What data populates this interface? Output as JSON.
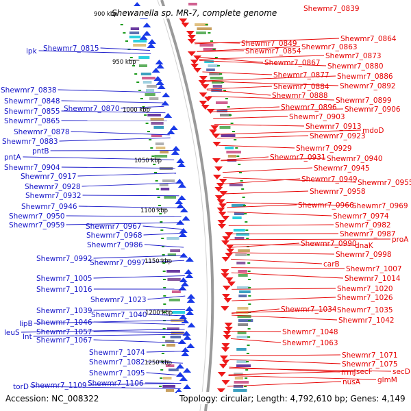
{
  "title": "Shewanella sp. MR-7, complete genome",
  "accession": "Accession: NC_008322",
  "topology": "Topology: circular; Length: 4,792,610 bp; Genes: 4,149",
  "colors": {
    "forward_label": "#1414c8",
    "reverse_label": "#e60000",
    "backbone": "#9a9a9a",
    "tick": "#1a9a1a"
  },
  "scale_ticks": [
    "900 kbp",
    "950 kbp",
    "1000 kbp",
    "1050 kbp",
    "1100 kbp",
    "1150 kbp",
    "1200 kbp",
    "1250 kbp"
  ],
  "left_labels": [
    "ipk",
    "Shewmr7_0815",
    "Shewmr7_0838",
    "Shewmr7_0848",
    "Shewmr7_0855",
    "Shewmr7_0870",
    "Shewmr7_0865",
    "Shewmr7_0878",
    "Shewmr7_0883",
    "pntB",
    "pntA",
    "Shewmr7_0904",
    "Shewmr7_0917",
    "Shewmr7_0928",
    "Shewmr7_0932",
    "Shewmr7_0946",
    "Shewmr7_0950",
    "Shewmr7_0959",
    "Shewmr7_0967",
    "Shewmr7_0968",
    "Shewmr7_0986",
    "Shewmr7_0992",
    "Shewmr7_0997",
    "Shewmr7_1005",
    "Shewmr7_1016",
    "Shewmr7_1023",
    "Shewmr7_1039",
    "Shewmr7_1040",
    "lipB",
    "Shewmr7_1046",
    "leuS",
    "Shewmr7_1057",
    "lnt",
    "Shewmr7_1067",
    "Shewmr7_1074",
    "Shewmr7_1082",
    "Shewmr7_1095",
    "Shewmr7_1106",
    "torD",
    "Shewmr7_1109"
  ],
  "right_labels": [
    "Shewmr7_0839",
    "Shewmr7_0864",
    "Shewmr7_0849",
    "Shewmr7_0863",
    "Shewmr7_0854",
    "Shewmr7_0873",
    "Shewmr7_0867",
    "Shewmr7_0880",
    "Shewmr7_0886",
    "Shewmr7_0877",
    "Shewmr7_0884",
    "Shewmr7_0892",
    "Shewmr7_0888",
    "Shewmr7_0899",
    "Shewmr7_0896",
    "Shewmr7_0906",
    "Shewmr7_0903",
    "Shewmr7_0913",
    "mdoD",
    "Shewmr7_0923",
    "Shewmr7_0929",
    "Shewmr7_0931",
    "Shewmr7_0940",
    "Shewmr7_0945",
    "Shewmr7_0949",
    "Shewmr7_0955",
    "Shewmr7_0958",
    "Shewmr7_0966",
    "Shewmr7_0969",
    "Shewmr7_0974",
    "Shewmr7_0982",
    "Shewmr7_0987",
    "proA",
    "Shewmr7_0990",
    "dnaK",
    "Shewmr7_0998",
    "carB",
    "Shewmr7_1007",
    "Shewmr7_1014",
    "Shewmr7_1020",
    "Shewmr7_1026",
    "Shewmr7_1034",
    "Shewmr7_1035",
    "Shewmr7_1042",
    "Shewmr7_1048",
    "Shewmr7_1063",
    "Shewmr7_1071",
    "Shewmr7_1075",
    "rrmJ",
    "secF",
    "secD",
    "nusA",
    "glmM"
  ]
}
